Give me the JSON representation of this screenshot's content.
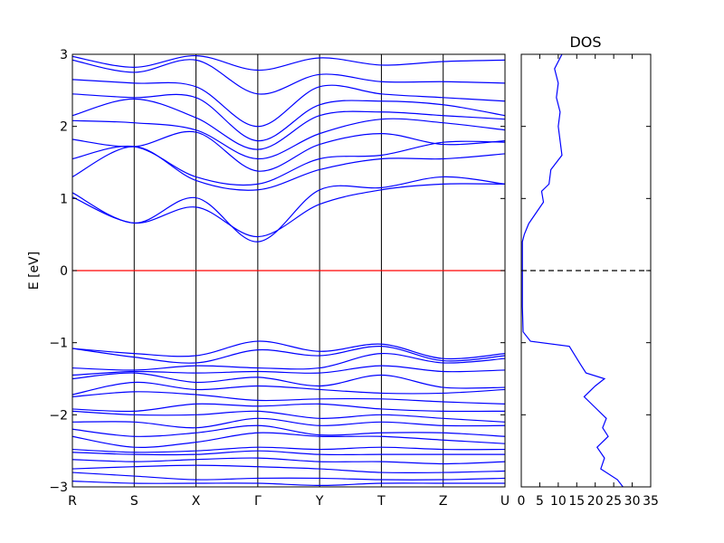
{
  "chart_data": [
    {
      "type": "line",
      "panel": "band-structure",
      "title": "",
      "ylabel": "E [eV]",
      "xlabel": "",
      "ylim": [
        -3,
        3
      ],
      "y_ticks": [
        -3,
        -2,
        -1,
        0,
        1,
        2,
        3
      ],
      "y_tick_labels": [
        "−3",
        "−2",
        "−1",
        "0",
        "1",
        "2",
        "3"
      ],
      "k_points": [
        "R",
        "S",
        "X",
        "Γ",
        "Y",
        "T",
        "Z",
        "U"
      ],
      "k_positions": [
        0,
        1,
        2,
        3,
        4,
        5,
        6,
        7
      ],
      "fermi_level": 0,
      "fermi_color": "#ff0000",
      "band_color": "#0000ff",
      "high_symmetry_line_color": "#000000",
      "conduction_bands": [
        [
          1.02,
          0.66,
          0.88,
          0.47,
          0.92,
          1.12,
          1.2,
          1.2
        ],
        [
          1.08,
          0.66,
          1.01,
          0.4,
          1.12,
          1.15,
          1.3,
          1.2
        ],
        [
          1.3,
          1.72,
          1.25,
          1.12,
          1.4,
          1.55,
          1.55,
          1.62
        ],
        [
          1.55,
          1.72,
          1.3,
          1.2,
          1.55,
          1.6,
          1.78,
          1.78
        ],
        [
          1.82,
          1.72,
          1.92,
          1.38,
          1.75,
          1.9,
          1.75,
          1.8
        ],
        [
          2.08,
          2.05,
          1.95,
          1.55,
          1.9,
          2.1,
          2.05,
          1.95
        ],
        [
          2.15,
          2.38,
          2.12,
          1.68,
          2.15,
          2.2,
          2.15,
          2.1
        ],
        [
          2.45,
          2.4,
          2.4,
          1.8,
          2.3,
          2.35,
          2.3,
          2.15
        ],
        [
          2.65,
          2.6,
          2.55,
          2.0,
          2.55,
          2.45,
          2.4,
          2.35
        ],
        [
          2.92,
          2.75,
          2.92,
          2.45,
          2.72,
          2.62,
          2.62,
          2.6
        ],
        [
          2.97,
          2.82,
          2.98,
          2.78,
          2.95,
          2.85,
          2.9,
          2.92
        ]
      ],
      "valence_bands": [
        [
          -1.08,
          -1.15,
          -1.18,
          -0.98,
          -1.12,
          -1.02,
          -1.22,
          -1.15
        ],
        [
          -1.08,
          -1.2,
          -1.28,
          -1.1,
          -1.18,
          -1.05,
          -1.25,
          -1.18
        ],
        [
          -1.35,
          -1.38,
          -1.32,
          -1.35,
          -1.35,
          -1.15,
          -1.28,
          -1.22
        ],
        [
          -1.45,
          -1.4,
          -1.42,
          -1.4,
          -1.42,
          -1.32,
          -1.4,
          -1.38
        ],
        [
          -1.5,
          -1.42,
          -1.55,
          -1.48,
          -1.6,
          -1.45,
          -1.62,
          -1.62
        ],
        [
          -1.72,
          -1.55,
          -1.65,
          -1.6,
          -1.65,
          -1.7,
          -1.7,
          -1.65
        ],
        [
          -1.75,
          -1.68,
          -1.72,
          -1.8,
          -1.78,
          -1.78,
          -1.82,
          -1.85
        ],
        [
          -1.92,
          -1.95,
          -1.85,
          -1.88,
          -1.85,
          -1.92,
          -1.95,
          -1.95
        ],
        [
          -1.95,
          -2.0,
          -2.0,
          -1.95,
          -2.05,
          -2.0,
          -2.05,
          -2.1
        ],
        [
          -2.1,
          -2.1,
          -2.18,
          -2.05,
          -2.15,
          -2.1,
          -2.15,
          -2.15
        ],
        [
          -2.2,
          -2.3,
          -2.25,
          -2.15,
          -2.28,
          -2.25,
          -2.25,
          -2.3
        ],
        [
          -2.3,
          -2.45,
          -2.38,
          -2.25,
          -2.3,
          -2.3,
          -2.35,
          -2.4
        ],
        [
          -2.48,
          -2.52,
          -2.5,
          -2.45,
          -2.48,
          -2.45,
          -2.48,
          -2.48
        ],
        [
          -2.52,
          -2.55,
          -2.55,
          -2.5,
          -2.55,
          -2.55,
          -2.55,
          -2.55
        ],
        [
          -2.62,
          -2.65,
          -2.62,
          -2.6,
          -2.65,
          -2.65,
          -2.68,
          -2.65
        ],
        [
          -2.75,
          -2.72,
          -2.7,
          -2.72,
          -2.75,
          -2.8,
          -2.8,
          -2.78
        ],
        [
          -2.8,
          -2.85,
          -2.9,
          -2.88,
          -2.88,
          -2.9,
          -2.9,
          -2.88
        ],
        [
          -2.92,
          -2.95,
          -2.95,
          -2.95,
          -2.98,
          -2.95,
          -2.95,
          -2.95
        ]
      ]
    },
    {
      "type": "line",
      "panel": "dos",
      "title": "DOS",
      "xlabel": "",
      "ylabel": "",
      "xlim": [
        0,
        35
      ],
      "ylim": [
        -3,
        3
      ],
      "x_ticks": [
        0,
        5,
        10,
        15,
        20,
        25,
        30,
        35
      ],
      "x_tick_labels": [
        "0",
        "5",
        "10",
        "15",
        "20",
        "25",
        "30",
        "35"
      ],
      "reference_line": 0,
      "reference_style": "dashed",
      "line_color": "#0000ff",
      "points": [
        {
          "dos": 27.5,
          "energy": -3.0
        },
        {
          "dos": 26.0,
          "energy": -2.9
        },
        {
          "dos": 21.5,
          "energy": -2.75
        },
        {
          "dos": 22.5,
          "energy": -2.6
        },
        {
          "dos": 20.5,
          "energy": -2.45
        },
        {
          "dos": 23.5,
          "energy": -2.3
        },
        {
          "dos": 22.0,
          "energy": -2.18
        },
        {
          "dos": 23.0,
          "energy": -2.05
        },
        {
          "dos": 20.0,
          "energy": -1.9
        },
        {
          "dos": 17.0,
          "energy": -1.75
        },
        {
          "dos": 20.0,
          "energy": -1.6
        },
        {
          "dos": 22.5,
          "energy": -1.5
        },
        {
          "dos": 17.5,
          "energy": -1.42
        },
        {
          "dos": 16.0,
          "energy": -1.3
        },
        {
          "dos": 13.0,
          "energy": -1.05
        },
        {
          "dos": 2.5,
          "energy": -0.98
        },
        {
          "dos": 0.5,
          "energy": -0.85
        },
        {
          "dos": 0.3,
          "energy": -0.5
        },
        {
          "dos": 0.3,
          "energy": 0.0
        },
        {
          "dos": 0.3,
          "energy": 0.4
        },
        {
          "dos": 0.8,
          "energy": 0.5
        },
        {
          "dos": 2.0,
          "energy": 0.65
        },
        {
          "dos": 4.0,
          "energy": 0.8
        },
        {
          "dos": 6.0,
          "energy": 0.95
        },
        {
          "dos": 5.5,
          "energy": 1.1
        },
        {
          "dos": 7.5,
          "energy": 1.2
        },
        {
          "dos": 8.0,
          "energy": 1.4
        },
        {
          "dos": 9.5,
          "energy": 1.5
        },
        {
          "dos": 11.0,
          "energy": 1.6
        },
        {
          "dos": 10.5,
          "energy": 1.8
        },
        {
          "dos": 10.0,
          "energy": 2.0
        },
        {
          "dos": 10.5,
          "energy": 2.2
        },
        {
          "dos": 9.5,
          "energy": 2.4
        },
        {
          "dos": 10.0,
          "energy": 2.6
        },
        {
          "dos": 9.0,
          "energy": 2.8
        },
        {
          "dos": 11.0,
          "energy": 3.0
        }
      ]
    }
  ]
}
